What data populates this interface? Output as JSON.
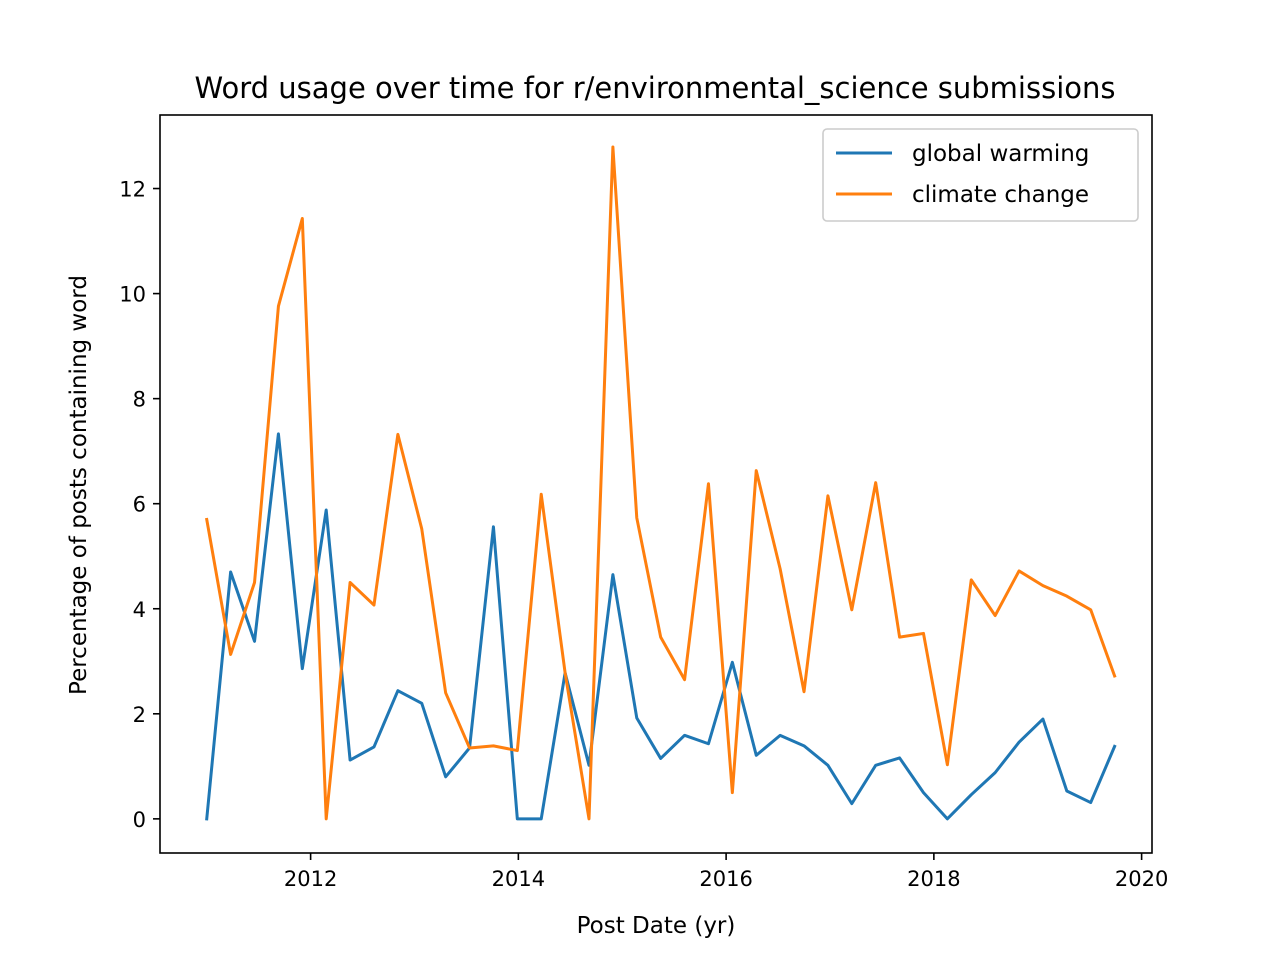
{
  "chart_data": {
    "type": "line",
    "title": "Word usage over time for r/environmental_science submissions",
    "xlabel": "Post Date (yr)",
    "ylabel": "Percentage of posts containing word",
    "xlim": [
      2010.55,
      2020.1
    ],
    "ylim": [
      -0.65,
      13.4
    ],
    "xticks": [
      2012,
      2014,
      2016,
      2018,
      2020
    ],
    "xtick_labels": [
      "2012",
      "2014",
      "2016",
      "2018",
      "2020"
    ],
    "yticks": [
      0,
      2,
      4,
      6,
      8,
      10,
      12
    ],
    "ytick_labels": [
      "0",
      "2",
      "4",
      "6",
      "8",
      "10",
      "12"
    ],
    "grid": false,
    "legend": "top-right",
    "x": [
      2011.0,
      2011.23,
      2011.46,
      2011.69,
      2011.92,
      2012.15,
      2012.38,
      2012.61,
      2012.84,
      2013.07,
      2013.3,
      2013.53,
      2013.76,
      2013.99,
      2014.22,
      2014.45,
      2014.68,
      2014.91,
      2015.14,
      2015.37,
      2015.6,
      2015.83,
      2016.06,
      2016.29,
      2016.52,
      2016.75,
      2016.98,
      2017.21,
      2017.44,
      2017.67,
      2017.9,
      2018.13,
      2018.36,
      2018.59,
      2018.82,
      2019.05,
      2019.28,
      2019.51,
      2019.74
    ],
    "series": [
      {
        "name": "global warming",
        "color": "#1f77b4",
        "values": [
          0.0,
          4.7,
          3.38,
          7.33,
          2.86,
          5.88,
          1.12,
          1.37,
          2.44,
          2.2,
          0.8,
          1.35,
          5.56,
          0.0,
          0.0,
          2.78,
          1.02,
          4.65,
          1.92,
          1.15,
          1.59,
          1.43,
          2.98,
          1.21,
          1.59,
          1.39,
          1.02,
          0.29,
          1.02,
          1.16,
          0.5,
          0.0,
          0.46,
          0.88,
          1.46,
          1.9,
          0.53,
          0.31,
          1.38
        ]
      },
      {
        "name": "climate change",
        "color": "#ff7f0e",
        "values": [
          5.7,
          3.13,
          4.5,
          9.76,
          11.43,
          0.0,
          4.5,
          4.07,
          7.32,
          5.52,
          2.4,
          1.35,
          1.39,
          1.3,
          6.18,
          2.78,
          0.0,
          12.79,
          5.73,
          3.46,
          2.65,
          6.38,
          0.5,
          6.63,
          4.76,
          2.42,
          6.15,
          3.98,
          6.4,
          3.46,
          3.53,
          1.03,
          4.55,
          3.87,
          4.72,
          4.44,
          4.24,
          3.98,
          2.72
        ]
      }
    ]
  }
}
